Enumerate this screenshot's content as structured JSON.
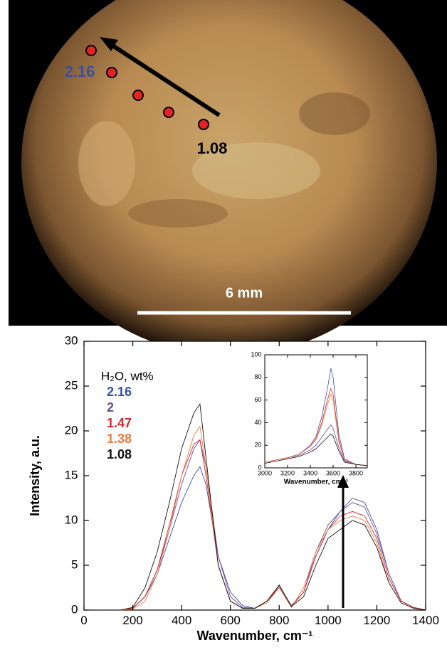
{
  "image": {
    "point_labels": [
      "2.16",
      "1.08"
    ],
    "scale_bar": "6 mm"
  },
  "chart_data": [
    {
      "type": "line",
      "xlabel": "Wavenumber, cm⁻¹",
      "ylabel": "Intensity, a.u.",
      "legend_title": "H₂O, wt%",
      "xlim": [
        0,
        1400
      ],
      "xticks": [
        0,
        200,
        400,
        600,
        800,
        1000,
        1200,
        1400
      ],
      "ylim": [
        0,
        30
      ],
      "yticks": [
        0,
        5,
        10,
        15,
        20,
        25,
        30
      ],
      "x": [
        50,
        100,
        150,
        200,
        250,
        300,
        350,
        400,
        450,
        475,
        500,
        550,
        600,
        650,
        700,
        750,
        800,
        850,
        900,
        950,
        1000,
        1050,
        1100,
        1150,
        1200,
        1250,
        1300,
        1350,
        1400
      ],
      "series": [
        {
          "name": "2.16",
          "color": "#3a4fa0",
          "values": [
            0,
            0,
            0,
            0.2,
            1.5,
            4,
            8,
            12,
            15,
            16,
            14,
            6,
            2,
            0.5,
            0.2,
            1,
            2.5,
            0.5,
            2,
            6,
            9,
            11,
            12.5,
            12,
            9,
            4,
            1,
            0.3,
            0
          ]
        },
        {
          "name": "2",
          "color": "#6a4c9c",
          "values": [
            0,
            0,
            0,
            0.2,
            1.5,
            4.5,
            9,
            14,
            18,
            19,
            16,
            6,
            1.5,
            0.3,
            0.2,
            1,
            2.7,
            0.5,
            2,
            6.5,
            9.5,
            11,
            12,
            11.5,
            8.5,
            4,
            1,
            0.3,
            0
          ]
        },
        {
          "name": "1.47",
          "color": "#d7262b",
          "values": [
            0,
            0,
            0,
            0.2,
            1.5,
            4.5,
            9.5,
            15,
            18.5,
            19,
            15,
            5,
            1,
            0.2,
            0.2,
            1,
            2.5,
            0.4,
            2,
            6,
            9,
            10.5,
            11,
            10.5,
            8,
            3.5,
            1,
            0.3,
            0
          ]
        },
        {
          "name": "1.38",
          "color": "#ec7a3c",
          "values": [
            0,
            0,
            0,
            0.1,
            1,
            4,
            9,
            15,
            19.5,
            20.5,
            16,
            5,
            1,
            0.2,
            0.2,
            0.8,
            2.5,
            0.3,
            2.5,
            6.5,
            9,
            10,
            10.5,
            10,
            7.5,
            3,
            0.8,
            0.2,
            0
          ]
        },
        {
          "name": "1.08",
          "color": "#111111",
          "values": [
            0,
            0,
            0,
            0.3,
            2.5,
            6.5,
            12,
            18,
            22,
            23,
            17,
            5,
            1,
            0.2,
            0.2,
            1,
            2.8,
            0.4,
            1.5,
            5,
            8,
            9,
            10,
            9.5,
            7,
            3,
            0.8,
            0.2,
            0
          ]
        }
      ]
    },
    {
      "type": "line",
      "xlabel": "Wavenumber, cm⁻¹",
      "xlim": [
        3000,
        3900
      ],
      "xticks": [
        3000,
        3200,
        3400,
        3600,
        3800
      ],
      "ylim": [
        0,
        100
      ],
      "yticks": [
        0,
        20,
        40,
        60,
        80,
        100
      ],
      "x": [
        3000,
        3100,
        3200,
        3300,
        3400,
        3450,
        3500,
        3550,
        3580,
        3600,
        3650,
        3700,
        3800,
        3900
      ],
      "series": [
        {
          "color": "#3a4fa0",
          "values": [
            5,
            7,
            9,
            12,
            20,
            28,
            45,
            70,
            88,
            80,
            30,
            8,
            3,
            2
          ]
        },
        {
          "color": "#6a4c9c",
          "values": [
            5,
            7,
            9,
            11,
            16,
            20,
            27,
            34,
            38,
            35,
            18,
            6,
            3,
            2
          ]
        },
        {
          "color": "#d7262b",
          "values": [
            5,
            7,
            9,
            12,
            19,
            26,
            40,
            60,
            70,
            65,
            25,
            7,
            3,
            2
          ]
        },
        {
          "color": "#ec7a3c",
          "values": [
            5,
            7,
            9,
            12,
            19,
            25,
            38,
            56,
            65,
            60,
            23,
            7,
            3,
            2
          ]
        },
        {
          "color": "#111111",
          "values": [
            4,
            6,
            8,
            10,
            14,
            17,
            22,
            27,
            30,
            28,
            15,
            5,
            3,
            2
          ]
        }
      ]
    }
  ]
}
